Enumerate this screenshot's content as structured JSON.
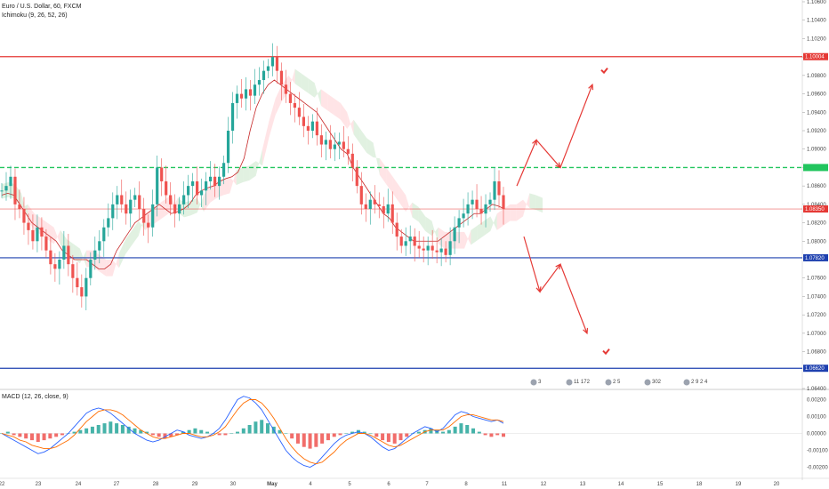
{
  "header": {
    "symbol_line": "Euro / U.S. Dollar, 60, FXCM",
    "indicator_line": "Ichimoku (9, 26, 52, 26)"
  },
  "macd_label": "MACD (12, 26, close, 9)",
  "colors": {
    "bull": "#26a69a",
    "bear": "#ef5350",
    "tenkan": "#c62828",
    "cloud_bull": "#c8e6c9",
    "cloud_bear": "#ffcdd2",
    "resistance": "#e53935",
    "support": "#1e40af",
    "green_level": "#22c55e",
    "macd_line": "#2962ff",
    "signal_line": "#ff6d00",
    "arrow": "#e53935"
  },
  "chart_data": [
    {
      "type": "candlestick",
      "title": "Euro / U.S. Dollar, 60, FXCM",
      "ylim": [
        1.064,
        1.106
      ],
      "yticks": [
        1.064,
        1.068,
        1.07,
        1.072,
        1.074,
        1.076,
        1.08,
        1.082,
        1.084,
        1.086,
        1.088,
        1.09,
        1.092,
        1.094,
        1.096,
        1.098,
        1.1,
        1.102,
        1.104,
        1.106
      ],
      "ytick_labels": [
        "1.06400",
        "1.06800",
        "1.07000",
        "1.07200",
        "1.07400",
        "1.07600",
        "1.08000",
        "1.08200",
        "1.08400",
        "1.08600",
        "1.08800",
        "1.09000",
        "1.09200",
        "1.09400",
        "1.09600",
        "1.09800",
        "1.10000",
        "1.10200",
        "1.10400",
        "1.10600"
      ],
      "x_labels": [
        "22",
        "23",
        "24",
        "27",
        "28",
        "29",
        "30",
        "May",
        "4",
        "5",
        "6",
        "7",
        "8",
        "11",
        "12",
        "13",
        "14",
        "15",
        "18",
        "19",
        "20"
      ],
      "levels": [
        {
          "name": "resistance",
          "value": 1.10004,
          "label": "1.10004",
          "color": "#e53935"
        },
        {
          "name": "green",
          "value": 1.088,
          "label": "",
          "color": "#22c55e",
          "dashed": true
        },
        {
          "name": "current",
          "value": 1.0835,
          "label": "1.08350",
          "color": "#e53935",
          "thin": true
        },
        {
          "name": "support",
          "value": 1.0782,
          "label": "1.07820",
          "color": "#1e40af"
        },
        {
          "name": "support2",
          "value": 1.0662,
          "label": "1.06620",
          "color": "#1e40af"
        }
      ],
      "close_path": [
        1.0855,
        1.086,
        1.087,
        1.084,
        1.0835,
        1.082,
        1.0812,
        1.08,
        1.0815,
        1.0805,
        1.079,
        1.0775,
        1.077,
        1.078,
        1.0795,
        1.0775,
        1.076,
        1.075,
        1.074,
        1.076,
        1.078,
        1.079,
        1.08,
        1.0815,
        1.0825,
        1.084,
        1.085,
        1.084,
        1.083,
        1.0845,
        1.085,
        1.0835,
        1.082,
        1.0815,
        1.084,
        1.088,
        1.0865,
        1.085,
        1.084,
        1.083,
        1.084,
        1.085,
        1.086,
        1.0865,
        1.085,
        1.0855,
        1.0865,
        1.087,
        1.086,
        1.087,
        1.0885,
        1.092,
        1.095,
        1.096,
        1.0955,
        1.0965,
        1.0958,
        1.097,
        1.0975,
        1.0985,
        1.099,
        1.1,
        1.0985,
        1.097,
        1.096,
        1.095,
        1.0945,
        1.0935,
        1.0925,
        1.092,
        1.093,
        1.0915,
        1.0905,
        1.091,
        1.09,
        1.0905,
        1.0908,
        1.09,
        1.0895,
        1.088,
        1.086,
        1.084,
        1.0835,
        1.0845,
        1.084,
        1.0838,
        1.083,
        1.084,
        1.082,
        1.0805,
        1.0795,
        1.08,
        1.0805,
        1.0795,
        1.0792,
        1.079,
        1.0795,
        1.079,
        1.0788,
        1.0792,
        1.0785,
        1.08,
        1.0815,
        1.0825,
        1.083,
        1.084,
        1.0845,
        1.0835,
        1.083,
        1.084,
        1.0845,
        1.0865,
        1.085,
        1.0835
      ],
      "tenkan_path": [
        1.085,
        1.0852,
        1.085,
        1.084,
        1.083,
        1.082,
        1.0815,
        1.081,
        1.0805,
        1.08,
        1.079,
        1.0785,
        1.078,
        1.078,
        1.078,
        1.0775,
        1.077,
        1.077,
        1.0775,
        1.079,
        1.08,
        1.081,
        1.082,
        1.0825,
        1.083,
        1.0835,
        1.084,
        1.0835,
        1.083,
        1.0832,
        1.0835,
        1.084,
        1.085,
        1.0855,
        1.0858,
        1.086,
        1.0865,
        1.0868,
        1.087,
        1.0875,
        1.089,
        1.092,
        1.0945,
        1.096,
        1.097,
        1.0975,
        1.097,
        1.0965,
        1.096,
        1.0955,
        1.095,
        1.0945,
        1.094,
        1.093,
        1.092,
        1.091,
        1.09,
        1.0895,
        1.088,
        1.087,
        1.086,
        1.085,
        1.084,
        1.083,
        1.0825,
        1.0815,
        1.081,
        1.0805,
        1.08,
        1.08,
        1.08,
        1.08,
        1.08,
        1.0805,
        1.081,
        1.0815,
        1.082,
        1.0825,
        1.083,
        1.083,
        1.0835,
        1.084,
        1.0838,
        1.0835
      ],
      "projection_arrows": [
        {
          "from_x_frac": 0.632,
          "from_y": 1.086,
          "points": [
            [
              1.086
            ],
            [
              1.091
            ],
            [
              1.088
            ],
            [
              1.097
            ]
          ]
        },
        {
          "from_x_frac": 0.632,
          "from_y": 1.0805,
          "points": [
            [
              1.0805
            ],
            [
              1.0745
            ],
            [
              1.0775
            ],
            [
              1.07
            ]
          ]
        }
      ]
    },
    {
      "type": "macd",
      "title": "MACD (12, 26, close, 9)",
      "ylim": [
        -0.0025,
        0.0025
      ],
      "yticks": [
        0.002,
        0.001,
        0.0,
        -0.001,
        -0.002
      ],
      "ytick_labels": [
        "0.00200",
        "0.00100",
        "0.00000",
        "-0.00100",
        "-0.00200"
      ],
      "histogram": [
        0.0,
        0.0001,
        -0.0001,
        -0.0002,
        -0.0003,
        -0.0004,
        -0.0005,
        -0.0004,
        -0.0003,
        -0.0002,
        -0.0001,
        0.0,
        0.0001,
        0.0002,
        0.0003,
        0.0004,
        0.0005,
        0.0006,
        0.0007,
        0.0006,
        0.0005,
        0.0004,
        0.0003,
        0.0002,
        0.0001,
        -0.0001,
        -0.0002,
        -0.0003,
        -0.0002,
        -0.0001,
        0.0001,
        0.0002,
        0.0003,
        0.0002,
        0.0001,
        0.0,
        -0.0001,
        -0.0001,
        0.0,
        0.0001,
        0.0003,
        0.0005,
        0.0007,
        0.0008,
        0.0006,
        0.0004,
        0.0002,
        0.0,
        -0.0003,
        -0.0006,
        -0.0008,
        -0.0009,
        -0.0008,
        -0.0006,
        -0.0004,
        -0.0002,
        -0.0001,
        0.0,
        0.0001,
        0.0002,
        0.0001,
        0.0,
        -0.0002,
        -0.0004,
        -0.0005,
        -0.0006,
        -0.0004,
        -0.0002,
        0.0,
        0.0001,
        0.0002,
        0.0003,
        0.0002,
        0.0001,
        0.0002,
        0.0004,
        0.0006,
        0.0005,
        0.0003,
        0.0001,
        -0.0001,
        -0.0002,
        -0.0001,
        -0.0002
      ],
      "macd": [
        0.0,
        -0.0002,
        -0.0004,
        -0.0006,
        -0.0008,
        -0.001,
        -0.0012,
        -0.0011,
        -0.0009,
        -0.0006,
        -0.0003,
        0.0,
        0.0004,
        0.0008,
        0.0012,
        0.0014,
        0.0015,
        0.0014,
        0.0012,
        0.0009,
        0.0006,
        0.0003,
        0.0,
        -0.0002,
        -0.0004,
        -0.0005,
        -0.0004,
        -0.0002,
        0.0,
        0.0002,
        0.0001,
        -0.0001,
        -0.0002,
        -0.0003,
        -0.0002,
        0.0,
        0.0003,
        0.0008,
        0.0014,
        0.002,
        0.0022,
        0.0021,
        0.0018,
        0.0014,
        0.0008,
        0.0002,
        -0.0004,
        -0.001,
        -0.0014,
        -0.0017,
        -0.0019,
        -0.002,
        -0.0018,
        -0.0014,
        -0.001,
        -0.0006,
        -0.0003,
        -0.0001,
        0.0,
        0.0001,
        0.0,
        -0.0002,
        -0.0005,
        -0.0008,
        -0.001,
        -0.0009,
        -0.0006,
        -0.0003,
        0.0,
        0.0002,
        0.0004,
        0.0003,
        0.0001,
        0.0003,
        0.0007,
        0.0011,
        0.0013,
        0.0012,
        0.001,
        0.0009,
        0.0008,
        0.0007,
        0.0008,
        0.0006
      ],
      "signal": [
        0.0,
        -0.0001,
        -0.0002,
        -0.0004,
        -0.0005,
        -0.0007,
        -0.0008,
        -0.0009,
        -0.0009,
        -0.0008,
        -0.0006,
        -0.0004,
        -0.0001,
        0.0003,
        0.0007,
        0.001,
        0.0013,
        0.0014,
        0.0014,
        0.0013,
        0.0011,
        0.0008,
        0.0005,
        0.0002,
        0.0,
        -0.0002,
        -0.0003,
        -0.0003,
        -0.0002,
        -0.0001,
        0.0,
        0.0,
        -0.0001,
        -0.0002,
        -0.0002,
        -0.0001,
        0.0001,
        0.0004,
        0.0009,
        0.0014,
        0.0018,
        0.002,
        0.002,
        0.0018,
        0.0014,
        0.0009,
        0.0003,
        -0.0003,
        -0.0008,
        -0.0012,
        -0.0015,
        -0.0017,
        -0.0018,
        -0.0017,
        -0.0014,
        -0.0011,
        -0.0007,
        -0.0004,
        -0.0002,
        0.0,
        0.0,
        -0.0001,
        -0.0003,
        -0.0005,
        -0.0007,
        -0.0008,
        -0.0007,
        -0.0005,
        -0.0003,
        -0.0001,
        0.0001,
        0.0002,
        0.0002,
        0.0002,
        0.0004,
        0.0007,
        0.001,
        0.0011,
        0.0011,
        0.001,
        0.0009,
        0.0008,
        0.0008,
        0.0007
      ]
    }
  ],
  "event_badges": [
    "3",
    "11 172",
    "2 5",
    "302",
    "2 9 2 4"
  ]
}
